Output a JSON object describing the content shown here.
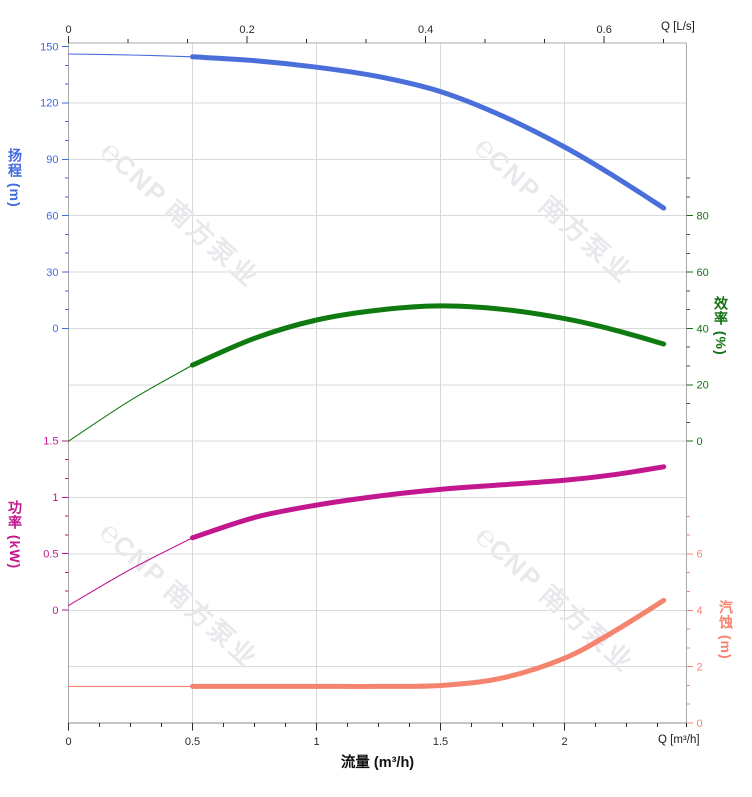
{
  "watermark": {
    "logo_glyph": "℮",
    "brand": "CNP",
    "cn": "南方泵业",
    "color": "#e9e9ed"
  },
  "colors": {
    "grid": "#d9d9d9",
    "spine": "#a8a8a8",
    "bottom_spine": "#8a8a8a",
    "xtick": "#2b2b2b"
  },
  "chart_data": {
    "type": "line",
    "x_bottom": {
      "axis_label": "流量 (m³/h)",
      "unit_label": "Q [m³/h]",
      "ticks": [
        "0",
        "0.5",
        "1",
        "1.5",
        "2"
      ],
      "tick_values": [
        0,
        0.5,
        1,
        1.5,
        2
      ],
      "range": [
        0,
        2.5
      ],
      "minor_per_major": 4
    },
    "x_top": {
      "unit_label": "Q [L/s]",
      "ticks": [
        "0",
        "0.2",
        "0.4",
        "0.6"
      ],
      "tick_values": [
        0,
        0.2,
        0.4,
        0.6
      ],
      "range": [
        0,
        0.694
      ],
      "minor_per_major": 3
    },
    "axes": {
      "head": {
        "label": "扬程 (m)",
        "color": "#4169e1",
        "side": "left",
        "ticks": [
          150,
          120,
          90,
          60,
          30,
          0
        ],
        "minor_step": 10,
        "minor_range": [
          0,
          150
        ]
      },
      "power": {
        "label": "功率 (kW)",
        "color": "#c2178f",
        "side": "left",
        "ticks": [
          1.5,
          1,
          0.5,
          0
        ],
        "minor_step": 0.1666667,
        "minor_range": [
          0,
          1.5
        ]
      },
      "eff": {
        "label": "效率 (%)",
        "color": "#157115",
        "side": "right",
        "ticks": [
          80,
          60,
          40,
          20,
          0
        ],
        "minor_step": 6.6666667,
        "minor_range": [
          0,
          93.4
        ]
      },
      "npsh": {
        "label": "汽蚀 (m)",
        "color": "#f5846f",
        "side": "right",
        "ticks": [
          6,
          4,
          2,
          0
        ],
        "minor_step": 0.6666667,
        "minor_range": [
          0,
          7.4
        ]
      }
    },
    "series": [
      {
        "name": "head-curve",
        "axis": "head",
        "color": "#4a6fdb",
        "thin_until": 0.5,
        "x": [
          0,
          0.25,
          0.5,
          0.75,
          1,
          1.25,
          1.5,
          1.75,
          2,
          2.2,
          2.4
        ],
        "y": [
          146,
          145.5,
          144.5,
          142.5,
          139,
          134,
          126,
          113,
          96.5,
          81,
          64
        ]
      },
      {
        "name": "efficiency-curve",
        "axis": "eff",
        "color": "#0f7a0f",
        "thin_until": 0.5,
        "x": [
          0,
          0.25,
          0.5,
          0.75,
          1,
          1.25,
          1.5,
          1.75,
          2,
          2.2,
          2.4
        ],
        "y": [
          0,
          14.5,
          27,
          36.5,
          43,
          46.5,
          48,
          46.8,
          43.5,
          39.5,
          34.5
        ]
      },
      {
        "name": "power-curve",
        "axis": "power",
        "color": "#c2178f",
        "thin_until": 0.5,
        "x": [
          0,
          0.25,
          0.5,
          0.75,
          1,
          1.25,
          1.5,
          1.75,
          2,
          2.2,
          2.4
        ],
        "y": [
          0.04,
          0.36,
          0.64,
          0.82,
          0.93,
          1.01,
          1.07,
          1.11,
          1.15,
          1.2,
          1.27
        ]
      },
      {
        "name": "npsh-curve",
        "axis": "npsh",
        "color": "#f5846f",
        "thin_until": 0.5,
        "x": [
          0,
          0.25,
          0.5,
          0.75,
          1,
          1.25,
          1.5,
          1.75,
          2,
          2.2,
          2.4
        ],
        "y": [
          1.3,
          1.3,
          1.3,
          1.3,
          1.3,
          1.3,
          1.33,
          1.6,
          2.3,
          3.25,
          4.35
        ]
      }
    ]
  }
}
